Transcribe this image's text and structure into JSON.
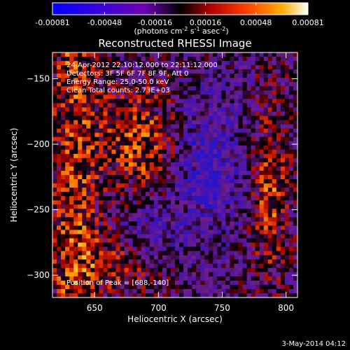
{
  "colorbar": {
    "tick_labels": [
      "-0.00081",
      "-0.00048",
      "-0.00016",
      "0.00016",
      "0.00048",
      "0.00081"
    ],
    "tick_values": [
      -0.00081,
      -0.00048,
      -0.00016,
      0.00016,
      0.00048,
      0.00081
    ],
    "range": [
      -0.00081,
      0.00081
    ],
    "unit_label": "(photons cm",
    "unit_sup1": "-2",
    "unit_mid": " s",
    "unit_sup2": "-1",
    "unit_end": " asec",
    "unit_sup3": "-2",
    "unit_close": ")",
    "colors": [
      "#0000ff",
      "#5a00c8",
      "#8a00aa",
      "#000000",
      "#c80000",
      "#ff5000",
      "#ffb400",
      "#ffffff"
    ]
  },
  "chart_data": {
    "type": "heatmap",
    "title": "Reconstructed RHESSI Image",
    "xlabel": "Heliocentric X (arcsec)",
    "ylabel": "Heliocentric Y (arcsec)",
    "xlim": [
      617,
      809
    ],
    "ylim": [
      -317,
      -130
    ],
    "x_ticks": [
      650,
      700,
      750,
      800
    ],
    "y_ticks": [
      -150,
      -200,
      -250,
      -300
    ],
    "x_tick_labels": [
      "650",
      "700",
      "750",
      "800"
    ],
    "y_tick_labels": [
      "−150",
      "−200",
      "−250",
      "−300"
    ],
    "annotations": [
      "24-Apr-2012 22:10:12.000 to 22:11:12.000",
      "Detectors: 3F 5F 6F 7F 8F 9F, Att 0",
      "Energy Range: 25.0-50.0 keV",
      "Clean    Total counts: 2.73E+03"
    ],
    "peak_label": "Position of Peak = [688,-140]",
    "peak_position": [
      688,
      -140
    ]
  },
  "footer": {
    "date_label": "3-May-2014 04:12"
  }
}
